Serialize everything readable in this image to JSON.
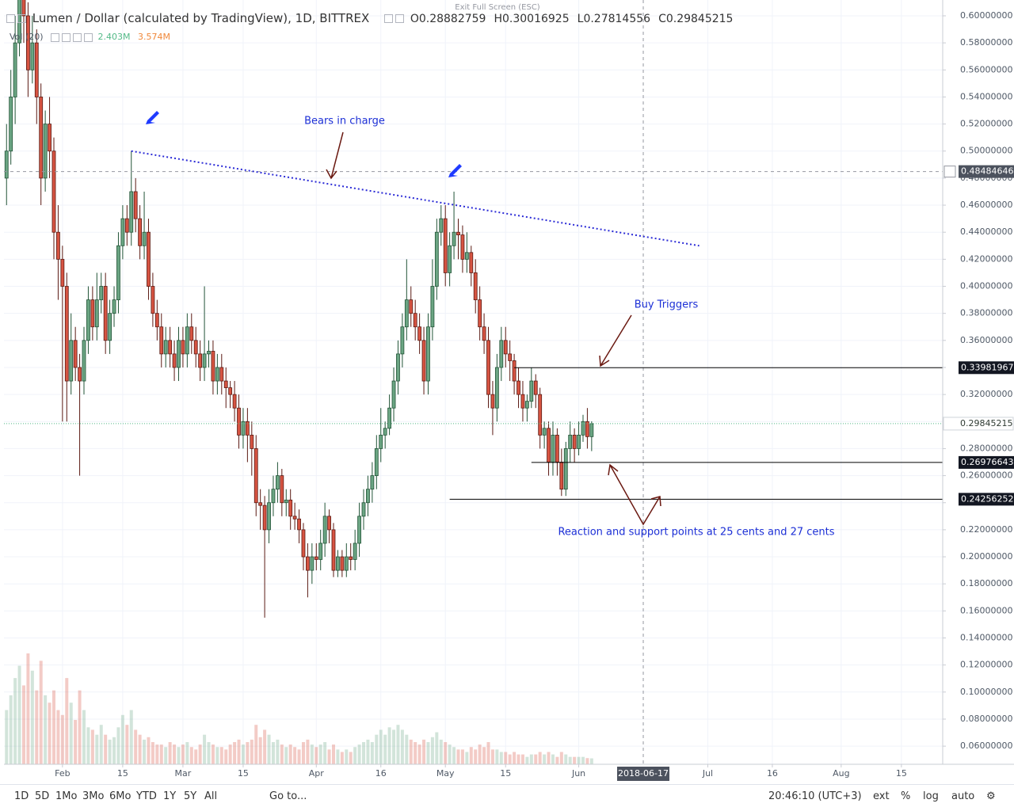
{
  "fullscreen_hint": "Exit Full Screen (ESC)",
  "toolbar": {
    "ranges": [
      "1D",
      "5D",
      "1Mo",
      "3Mo",
      "6Mo",
      "YTD",
      "1Y",
      "5Y",
      "All"
    ],
    "goto": "Go to...",
    "clock": "20:46:10 (UTC+3)",
    "options": [
      "ext",
      "%",
      "log",
      "auto"
    ]
  },
  "chart_data": {
    "type": "candlestick",
    "title": "Lumen / Dollar (calculated by TradingView), 1D, BITTREX",
    "ohlc_keys": [
      "O",
      "H",
      "L",
      "C"
    ],
    "up_color": "#6ba583",
    "down_color": "#d75442",
    "open": [
      0.48,
      0.5,
      0.54,
      0.58,
      0.62,
      0.6,
      0.56,
      0.58,
      0.54,
      0.48,
      0.52,
      0.5,
      0.44,
      0.42,
      0.4,
      0.33,
      0.36,
      0.34,
      0.33,
      0.36,
      0.39,
      0.37,
      0.39,
      0.4,
      0.36,
      0.38,
      0.39,
      0.43,
      0.45,
      0.44,
      0.47,
      0.45,
      0.43,
      0.44,
      0.4,
      0.38,
      0.37,
      0.35,
      0.36,
      0.35,
      0.34,
      0.36,
      0.35,
      0.37,
      0.36,
      0.35,
      0.34,
      0.35,
      0.352,
      0.33,
      0.34,
      0.33,
      0.325,
      0.32,
      0.31,
      0.29,
      0.3,
      0.29,
      0.28,
      0.24,
      0.238,
      0.22,
      0.24,
      0.25,
      0.26,
      0.24,
      0.242,
      0.23,
      0.228,
      0.22,
      0.2,
      0.19,
      0.2,
      0.198,
      0.21,
      0.23,
      0.22,
      0.19,
      0.2,
      0.19,
      0.2,
      0.198,
      0.21,
      0.23,
      0.24,
      0.25,
      0.26,
      0.28,
      0.29,
      0.295,
      0.31,
      0.33,
      0.35,
      0.37,
      0.39,
      0.38,
      0.37,
      0.36,
      0.33,
      0.37,
      0.4,
      0.44,
      0.45,
      0.41,
      0.43,
      0.44,
      0.438,
      0.42,
      0.425,
      0.41,
      0.39,
      0.37,
      0.36,
      0.32,
      0.31,
      0.34,
      0.36,
      0.35,
      0.345,
      0.33,
      0.32,
      0.31,
      0.315,
      0.33,
      0.32,
      0.29,
      0.295,
      0.27,
      0.29,
      0.27,
      0.25,
      0.28,
      0.29,
      0.28,
      0.29,
      0.3,
      0.28882759
    ],
    "high": [
      0.52,
      0.56,
      0.6,
      0.64,
      0.63,
      0.61,
      0.6,
      0.59,
      0.55,
      0.53,
      0.54,
      0.51,
      0.46,
      0.43,
      0.41,
      0.38,
      0.37,
      0.35,
      0.37,
      0.4,
      0.4,
      0.41,
      0.41,
      0.41,
      0.39,
      0.4,
      0.44,
      0.46,
      0.46,
      0.5,
      0.48,
      0.46,
      0.47,
      0.45,
      0.41,
      0.39,
      0.38,
      0.37,
      0.37,
      0.36,
      0.37,
      0.37,
      0.38,
      0.38,
      0.37,
      0.36,
      0.4,
      0.36,
      0.36,
      0.35,
      0.35,
      0.34,
      0.33,
      0.33,
      0.32,
      0.31,
      0.31,
      0.3,
      0.29,
      0.25,
      0.245,
      0.25,
      0.26,
      0.27,
      0.265,
      0.25,
      0.25,
      0.24,
      0.235,
      0.225,
      0.21,
      0.21,
      0.21,
      0.22,
      0.24,
      0.235,
      0.225,
      0.205,
      0.205,
      0.21,
      0.21,
      0.22,
      0.24,
      0.25,
      0.26,
      0.27,
      0.29,
      0.31,
      0.3,
      0.32,
      0.34,
      0.36,
      0.38,
      0.42,
      0.4,
      0.39,
      0.38,
      0.37,
      0.38,
      0.42,
      0.45,
      0.46,
      0.46,
      0.44,
      0.47,
      0.45,
      0.445,
      0.44,
      0.43,
      0.42,
      0.4,
      0.38,
      0.37,
      0.33,
      0.35,
      0.37,
      0.37,
      0.36,
      0.35,
      0.34,
      0.33,
      0.32,
      0.34,
      0.335,
      0.325,
      0.3,
      0.3,
      0.3,
      0.295,
      0.28,
      0.285,
      0.3,
      0.295,
      0.3,
      0.305,
      0.31,
      0.30016925
    ],
    "low": [
      0.46,
      0.49,
      0.52,
      0.57,
      0.58,
      0.54,
      0.55,
      0.52,
      0.46,
      0.47,
      0.48,
      0.42,
      0.39,
      0.3,
      0.3,
      0.32,
      0.33,
      0.26,
      0.32,
      0.35,
      0.36,
      0.36,
      0.38,
      0.35,
      0.35,
      0.37,
      0.38,
      0.42,
      0.43,
      0.43,
      0.44,
      0.42,
      0.42,
      0.39,
      0.37,
      0.36,
      0.34,
      0.34,
      0.34,
      0.33,
      0.33,
      0.34,
      0.34,
      0.35,
      0.34,
      0.33,
      0.33,
      0.34,
      0.32,
      0.32,
      0.32,
      0.31,
      0.31,
      0.3,
      0.28,
      0.28,
      0.27,
      0.26,
      0.23,
      0.22,
      0.155,
      0.21,
      0.23,
      0.24,
      0.23,
      0.23,
      0.22,
      0.22,
      0.21,
      0.19,
      0.17,
      0.18,
      0.19,
      0.19,
      0.2,
      0.21,
      0.185,
      0.185,
      0.185,
      0.185,
      0.19,
      0.19,
      0.2,
      0.22,
      0.23,
      0.24,
      0.25,
      0.27,
      0.28,
      0.29,
      0.3,
      0.32,
      0.34,
      0.36,
      0.37,
      0.36,
      0.35,
      0.32,
      0.32,
      0.36,
      0.39,
      0.43,
      0.4,
      0.4,
      0.42,
      0.42,
      0.41,
      0.41,
      0.4,
      0.38,
      0.36,
      0.35,
      0.31,
      0.29,
      0.3,
      0.33,
      0.34,
      0.33,
      0.32,
      0.31,
      0.3,
      0.3,
      0.31,
      0.31,
      0.28,
      0.28,
      0.26,
      0.26,
      0.26,
      0.245,
      0.245,
      0.27,
      0.27,
      0.275,
      0.285,
      0.28,
      0.27814556
    ],
    "close": [
      0.5,
      0.54,
      0.58,
      0.62,
      0.6,
      0.56,
      0.58,
      0.54,
      0.48,
      0.52,
      0.5,
      0.44,
      0.42,
      0.4,
      0.33,
      0.36,
      0.34,
      0.33,
      0.36,
      0.39,
      0.37,
      0.39,
      0.4,
      0.36,
      0.38,
      0.39,
      0.43,
      0.45,
      0.44,
      0.47,
      0.45,
      0.43,
      0.44,
      0.4,
      0.38,
      0.37,
      0.35,
      0.36,
      0.35,
      0.34,
      0.36,
      0.35,
      0.37,
      0.36,
      0.35,
      0.34,
      0.35,
      0.352,
      0.33,
      0.34,
      0.33,
      0.325,
      0.32,
      0.31,
      0.29,
      0.3,
      0.29,
      0.28,
      0.24,
      0.238,
      0.22,
      0.24,
      0.25,
      0.26,
      0.24,
      0.242,
      0.23,
      0.228,
      0.22,
      0.2,
      0.19,
      0.2,
      0.198,
      0.21,
      0.23,
      0.22,
      0.19,
      0.2,
      0.19,
      0.2,
      0.198,
      0.21,
      0.23,
      0.24,
      0.25,
      0.26,
      0.28,
      0.29,
      0.295,
      0.31,
      0.33,
      0.35,
      0.37,
      0.39,
      0.38,
      0.37,
      0.36,
      0.33,
      0.37,
      0.4,
      0.44,
      0.45,
      0.41,
      0.43,
      0.44,
      0.438,
      0.42,
      0.425,
      0.41,
      0.39,
      0.37,
      0.36,
      0.32,
      0.31,
      0.34,
      0.36,
      0.35,
      0.345,
      0.33,
      0.32,
      0.31,
      0.315,
      0.33,
      0.32,
      0.29,
      0.295,
      0.27,
      0.29,
      0.27,
      0.25,
      0.28,
      0.29,
      0.28,
      0.29,
      0.3,
      0.28882759,
      0.29845215
    ],
    "volume": {
      "label": "Vol (20)",
      "last_label": "2.403M",
      "ma_label": "3.574M",
      "values": [
        22,
        28,
        35,
        40,
        32,
        45,
        38,
        30,
        42,
        28,
        25,
        30,
        22,
        20,
        35,
        25,
        18,
        30,
        22,
        15,
        14,
        12,
        16,
        12,
        10,
        11,
        15,
        20,
        16,
        22,
        14,
        12,
        10,
        11,
        9,
        8,
        8,
        7,
        9,
        8,
        7,
        8,
        9,
        7,
        6,
        8,
        12,
        9,
        8,
        7,
        7,
        6,
        8,
        9,
        10,
        8,
        9,
        10,
        16,
        11,
        14,
        12,
        9,
        10,
        8,
        7,
        8,
        7,
        6,
        9,
        10,
        8,
        7,
        8,
        9,
        6,
        8,
        6,
        5,
        6,
        5,
        7,
        8,
        9,
        10,
        9,
        12,
        14,
        12,
        15,
        14,
        16,
        14,
        12,
        10,
        9,
        8,
        10,
        9,
        11,
        13,
        10,
        9,
        8,
        7,
        6,
        6,
        5,
        7,
        6,
        8,
        7,
        9,
        6,
        6,
        5,
        5,
        4,
        5,
        4,
        4,
        3,
        4,
        4,
        5,
        4,
        5,
        4,
        3,
        5,
        4,
        3,
        3,
        3,
        3,
        2.5,
        2.403
      ]
    },
    "xlim": [
      -0.6,
      217.6
    ],
    "xticks": [
      {
        "value": 13,
        "label": "Feb"
      },
      {
        "value": 27,
        "label": "15"
      },
      {
        "value": 41,
        "label": "Mar"
      },
      {
        "value": 55,
        "label": "15"
      },
      {
        "value": 72,
        "label": "Apr"
      },
      {
        "value": 87,
        "label": "16"
      },
      {
        "value": 102,
        "label": "May"
      },
      {
        "value": 116,
        "label": "15"
      },
      {
        "value": 133,
        "label": "Jun"
      },
      {
        "value": 163,
        "label": "Jul"
      },
      {
        "value": 178,
        "label": "16"
      },
      {
        "value": 194,
        "label": "Aug"
      },
      {
        "value": 208,
        "label": "15"
      }
    ],
    "ylim": [
      0.0466,
      0.6117
    ],
    "yticks": [
      {
        "value": 0.06,
        "label": "0.06000000"
      },
      {
        "value": 0.08,
        "label": "0.08000000"
      },
      {
        "value": 0.1,
        "label": "0.10000000"
      },
      {
        "value": 0.12,
        "label": "0.12000000"
      },
      {
        "value": 0.14,
        "label": "0.14000000"
      },
      {
        "value": 0.16,
        "label": "0.16000000"
      },
      {
        "value": 0.18,
        "label": "0.18000000"
      },
      {
        "value": 0.2,
        "label": "0.20000000"
      },
      {
        "value": 0.22,
        "label": "0.22000000"
      },
      {
        "value": 0.24,
        "label": "0.24000000"
      },
      {
        "value": 0.26,
        "label": "0.26000000"
      },
      {
        "value": 0.28,
        "label": "0.28000000"
      },
      {
        "value": 0.3,
        "label": "0.30000000"
      },
      {
        "value": 0.32,
        "label": "0.32000000"
      },
      {
        "value": 0.34,
        "label": "0.34000000"
      },
      {
        "value": 0.36,
        "label": "0.36000000"
      },
      {
        "value": 0.38,
        "label": "0.38000000"
      },
      {
        "value": 0.4,
        "label": "0.40000000"
      },
      {
        "value": 0.42,
        "label": "0.42000000"
      },
      {
        "value": 0.44,
        "label": "0.44000000"
      },
      {
        "value": 0.46,
        "label": "0.46000000"
      },
      {
        "value": 0.48,
        "label": "0.48000000"
      },
      {
        "value": 0.5,
        "label": "0.50000000"
      },
      {
        "value": 0.52,
        "label": "0.52000000"
      },
      {
        "value": 0.54,
        "label": "0.54000000"
      },
      {
        "value": 0.56,
        "label": "0.56000000"
      },
      {
        "value": 0.58,
        "label": "0.58000000"
      },
      {
        "value": 0.6,
        "label": "0.60000000"
      }
    ],
    "grid": true,
    "levels": [
      {
        "value": 0.33981967,
        "from": 118
      },
      {
        "value": 0.26976643,
        "from": 122
      },
      {
        "value": 0.24256252,
        "from": 103
      }
    ],
    "trendline": {
      "x": [
        29,
        161
      ],
      "y": [
        0.5,
        0.43
      ],
      "color": "#2b2bd6"
    },
    "crosshair": {
      "x": 148,
      "x_label": "2018-06-17",
      "y": 0.48484646
    },
    "annotations": [
      "Bears in charge",
      "Buy Triggers",
      "Reaction and support points at 25 cents and 27 cents"
    ]
  }
}
